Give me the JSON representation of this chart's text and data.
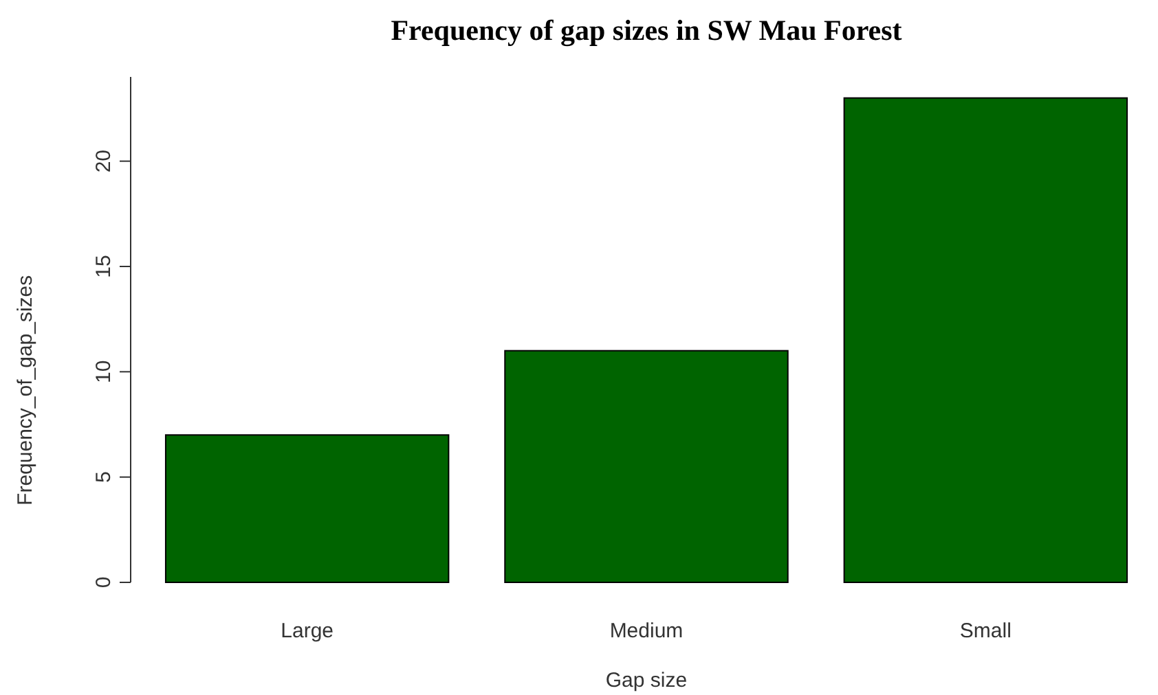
{
  "chart_data": {
    "type": "bar",
    "title": "Frequency of gap sizes in SW Mau Forest",
    "xlabel": "Gap size",
    "ylabel": "Frequency_of_gap_sizes",
    "categories": [
      "Large",
      "Medium",
      "Small"
    ],
    "values": [
      7,
      11,
      23
    ],
    "color": "#006400",
    "ylim": [
      0,
      24
    ],
    "yticks": [
      0,
      5,
      10,
      15,
      20
    ],
    "grid": false
  }
}
